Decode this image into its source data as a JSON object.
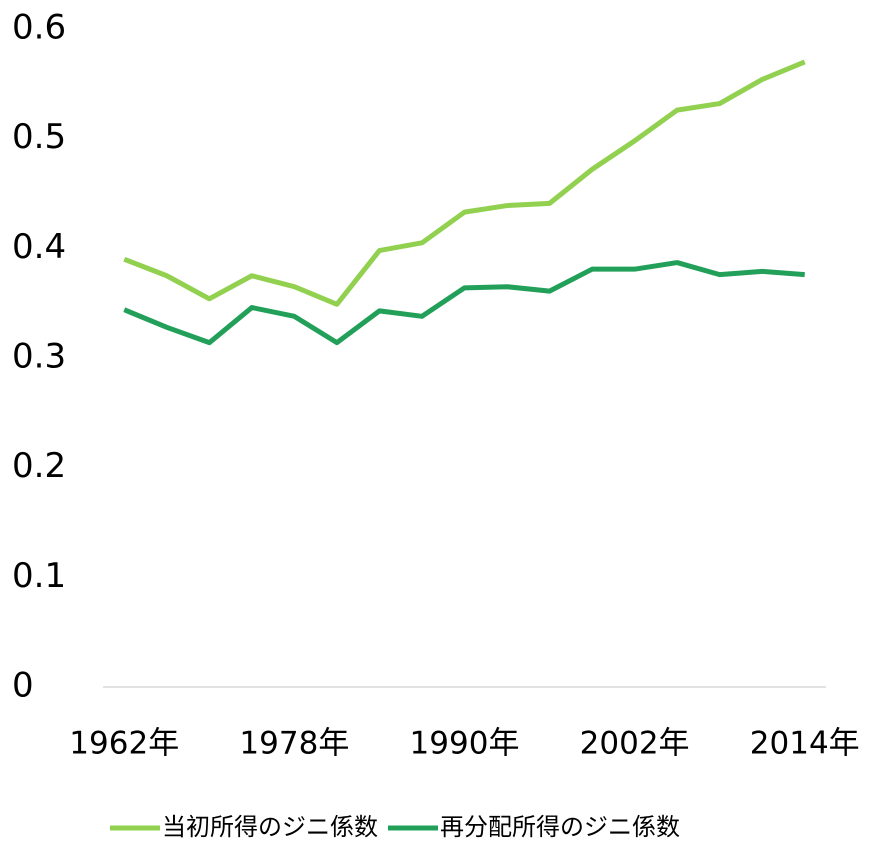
{
  "chart_data": {
    "type": "line",
    "categories": [
      "1962年",
      null,
      null,
      null,
      "1978年",
      null,
      null,
      null,
      "1990年",
      null,
      null,
      null,
      "2002年",
      null,
      null,
      null,
      "2014年"
    ],
    "series": [
      {
        "name": "当初所得のジニ係数",
        "color": "#92d050",
        "values": [
          0.39,
          0.375,
          0.354,
          0.375,
          0.365,
          0.349,
          0.398,
          0.405,
          0.433,
          0.439,
          0.441,
          0.472,
          0.498,
          0.526,
          0.532,
          0.554,
          0.57
        ]
      },
      {
        "name": "再分配所得のジニ係数",
        "color": "#22a05a",
        "values": [
          0.344,
          0.328,
          0.314,
          0.346,
          0.338,
          0.314,
          0.343,
          0.338,
          0.364,
          0.365,
          0.361,
          0.381,
          0.381,
          0.387,
          0.376,
          0.379,
          0.376
        ]
      }
    ],
    "ylim": [
      0,
      0.6
    ],
    "yticks": [
      0,
      0.1,
      0.2,
      0.3,
      0.4,
      0.5,
      0.6
    ],
    "grid": false,
    "legend": "bottom"
  }
}
